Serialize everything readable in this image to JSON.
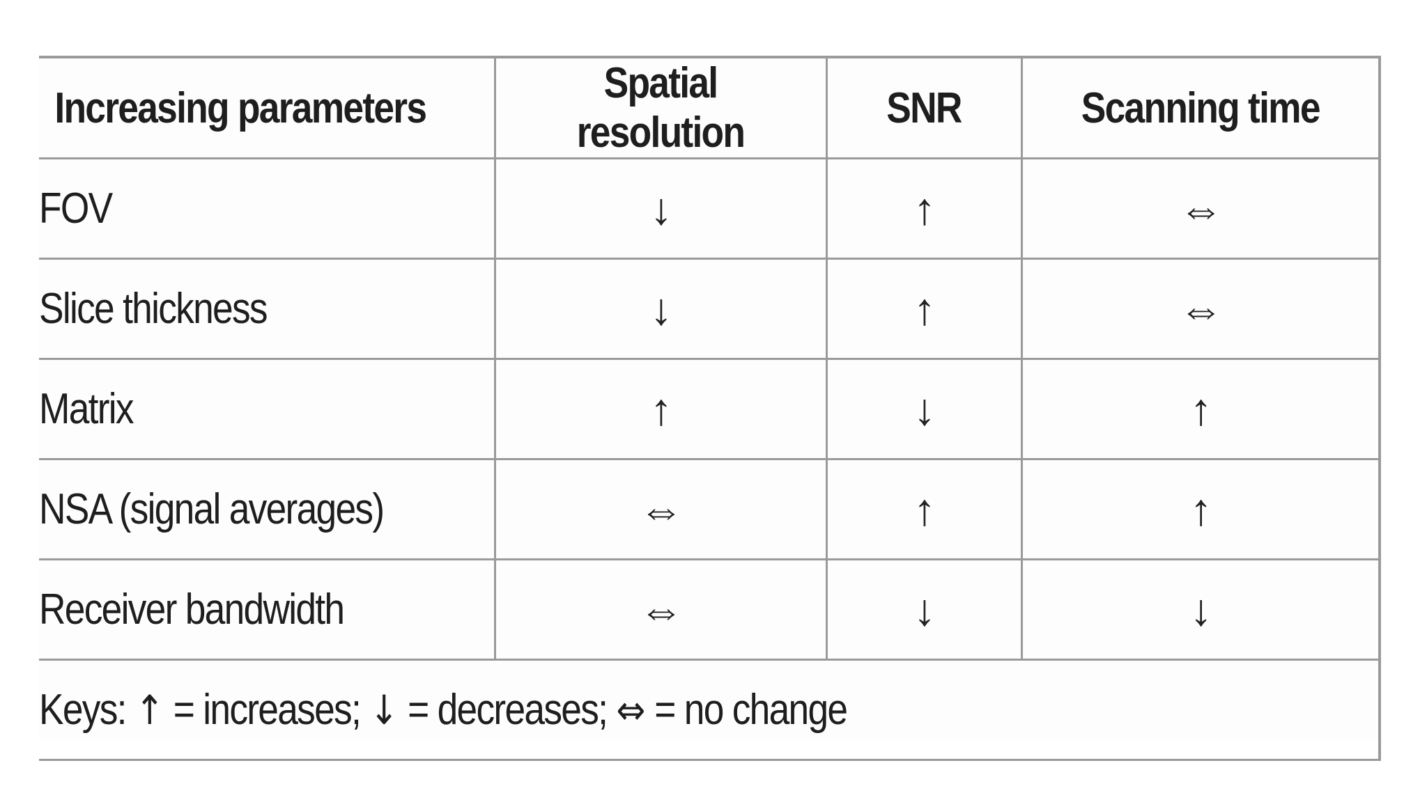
{
  "table": {
    "headers": {
      "parameter": "Increasing parameters",
      "spatial": "Spatial resolution",
      "snr": "SNR",
      "time": "Scanning time"
    },
    "rows": [
      {
        "parameter": "FOV",
        "spatial": "↓",
        "snr": "↑",
        "time": "⇔"
      },
      {
        "parameter": "Slice thickness",
        "spatial": "↓",
        "snr": "↑",
        "time": "⇔"
      },
      {
        "parameter": "Matrix",
        "spatial": "↑",
        "snr": "↓",
        "time": "↑"
      },
      {
        "parameter": "NSA (signal averages)",
        "spatial": "⇔",
        "snr": "↑",
        "time": "↑"
      },
      {
        "parameter": "Receiver bandwidth",
        "spatial": "⇔",
        "snr": "↓",
        "time": "↓"
      }
    ]
  },
  "keys": {
    "prefix": "Keys:",
    "increase_symbol": "↑",
    "increase_text": "= increases;",
    "decrease_symbol": "↓",
    "decrease_text": "= decreases;",
    "nochange_symbol": "⇔",
    "nochange_text": "= no change"
  }
}
